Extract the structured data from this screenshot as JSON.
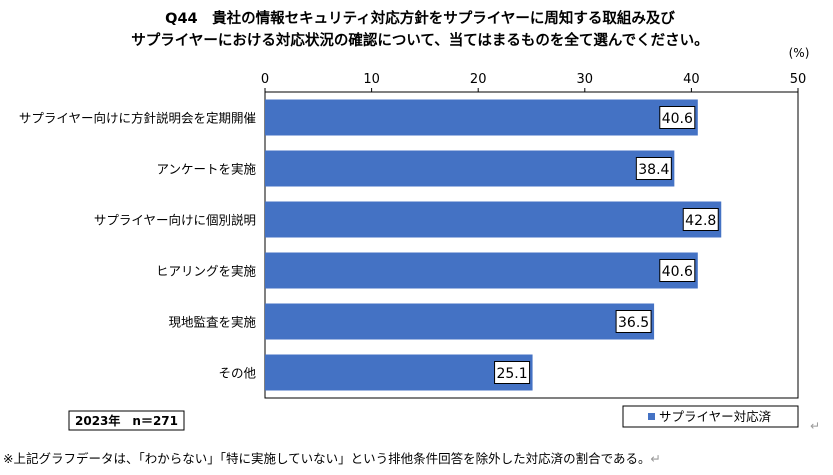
{
  "chart_data": {
    "type": "bar",
    "orientation": "horizontal",
    "title_lines": [
      "Q44　貴社の情報セキュリティ対応方針をサプライヤーに周知する取組み及び",
      "サプライヤーにおける対応状況の確認について、当てはまるものを全て選んでください。"
    ],
    "unit_label": "(%)",
    "categories": [
      "サプライヤー向けに方針説明会を定期開催",
      "アンケートを実施",
      "サプライヤー向けに個別説明",
      "ヒアリングを実施",
      "現地監査を実施",
      "その他"
    ],
    "values": [
      40.6,
      38.4,
      42.8,
      40.6,
      36.5,
      25.1
    ],
    "value_labels": [
      "40.6",
      "38.4",
      "42.8",
      "40.6",
      "36.5",
      "25.1"
    ],
    "xlim": [
      0,
      50
    ],
    "ticks": [
      0,
      10,
      20,
      30,
      40,
      50
    ],
    "tick_labels": [
      "0",
      "10",
      "20",
      "30",
      "40",
      "50"
    ],
    "series_name": "サプライヤー対応済",
    "sample_label": "2023年　n＝271",
    "bar_color": "#4472C4",
    "legend_position": "bottom-right",
    "grid": false
  },
  "footnote": "※上記グラフデータは、「わからない」「特に実施していない」という排他条件回答を除外した対応済の割合である。",
  "return_mark": "↵"
}
